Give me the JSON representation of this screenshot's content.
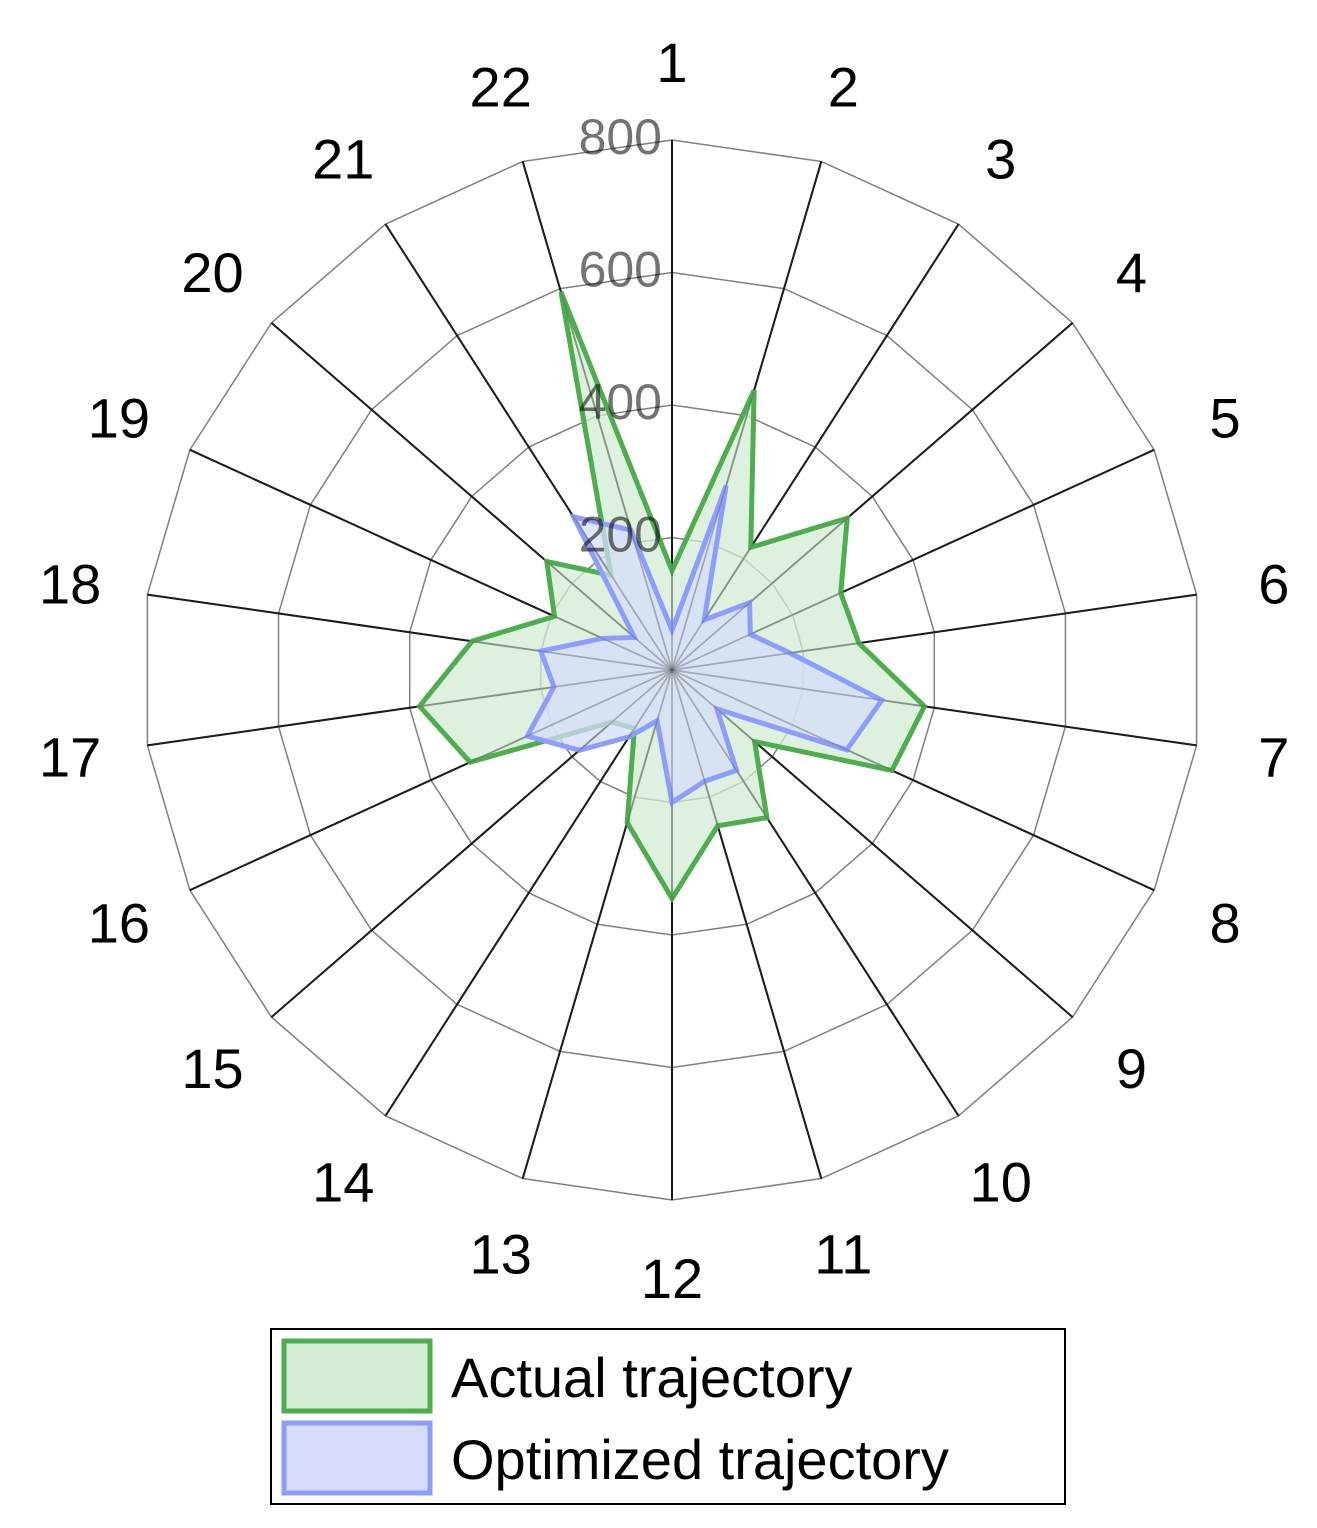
{
  "chart_data": {
    "type": "radar",
    "categories": [
      "1",
      "2",
      "3",
      "4",
      "5",
      "6",
      "7",
      "8",
      "9",
      "10",
      "11",
      "12",
      "13",
      "14",
      "15",
      "16",
      "17",
      "18",
      "19",
      "20",
      "21",
      "22"
    ],
    "rmax": 800,
    "ticks": [
      200,
      400,
      600,
      800
    ],
    "tick_labels": [
      "200",
      "400",
      "600",
      "800"
    ],
    "grid": true,
    "legend_position": "bottom",
    "series": [
      {
        "name": "Actual trajectory",
        "line_color": "#4cae4c",
        "fill_color": "#d3ecd3",
        "values": [
          150,
          440,
          220,
          350,
          280,
          285,
          385,
          365,
          165,
          265,
          245,
          345,
          240,
          105,
          120,
          335,
          385,
          305,
          195,
          250,
          170,
          595
        ]
      },
      {
        "name": "Optimized trajectory",
        "line_color": "#8c9cff",
        "fill_color": "#d4dcf9",
        "values": [
          60,
          290,
          90,
          155,
          130,
          180,
          320,
          290,
          90,
          180,
          175,
          200,
          80,
          120,
          185,
          240,
          180,
          200,
          115,
          75,
          275,
          220
        ]
      }
    ]
  }
}
